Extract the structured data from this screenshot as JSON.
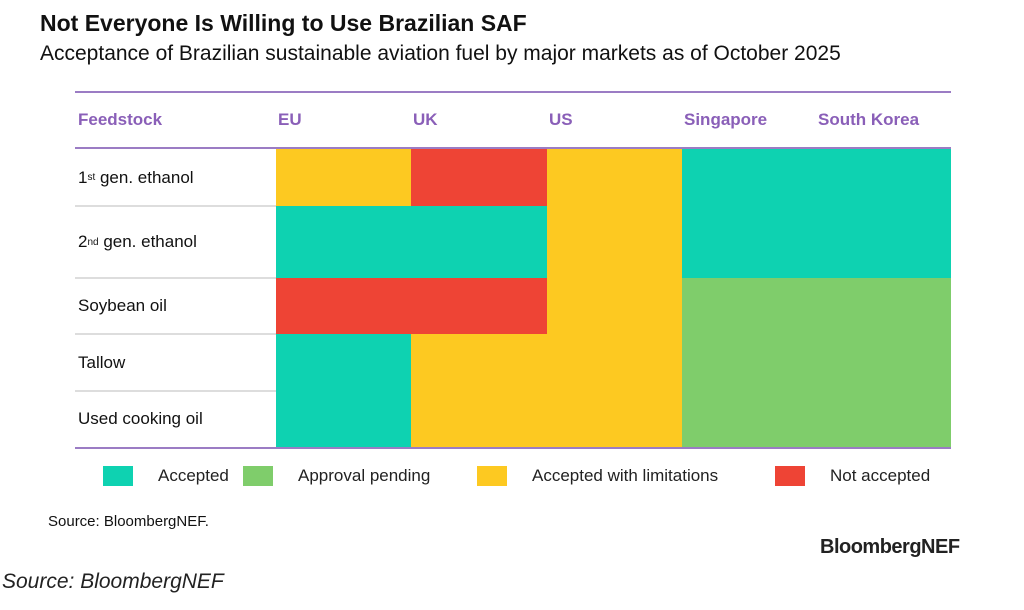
{
  "title": "Not Everyone Is Willing to Use Brazilian SAF",
  "subtitle": "Acceptance of Brazilian sustainable aviation fuel by major markets as of October 2025",
  "chart_data": {
    "type": "heatmap",
    "row_header": "Feedstock",
    "columns": [
      "EU",
      "UK",
      "US",
      "Singapore",
      "South Korea"
    ],
    "rows": [
      {
        "label": "1st gen. ethanol",
        "base": "1",
        "sup": "st",
        "rest": " gen. ethanol",
        "values": [
          "limited",
          "not",
          "limited",
          "accepted",
          "accepted"
        ]
      },
      {
        "label": "2nd gen. ethanol",
        "base": "2",
        "sup": "nd",
        "rest": " gen. ethanol",
        "values": [
          "accepted",
          "accepted",
          "limited",
          "accepted",
          "accepted"
        ]
      },
      {
        "label": "Soybean oil",
        "values": [
          "not",
          "not",
          "limited",
          "pending",
          "pending"
        ]
      },
      {
        "label": "Tallow",
        "values": [
          "accepted",
          "limited",
          "limited",
          "pending",
          "pending"
        ]
      },
      {
        "label": "Used cooking oil",
        "values": [
          "accepted",
          "limited",
          "limited",
          "pending",
          "pending"
        ]
      }
    ],
    "legend": [
      {
        "key": "accepted",
        "label": "Accepted",
        "color": "#0ed2b1"
      },
      {
        "key": "pending",
        "label": "Approval pending",
        "color": "#7fcd6b"
      },
      {
        "key": "limited",
        "label": "Accepted with limitations",
        "color": "#fdc921"
      },
      {
        "key": "not",
        "label": "Not accepted",
        "color": "#ee4435"
      }
    ]
  },
  "source": "Source: BloombergNEF.",
  "logo": "BloombergNEF",
  "caption": "Source: BloombergNEF"
}
